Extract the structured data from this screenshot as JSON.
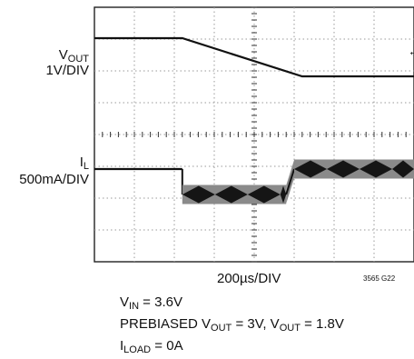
{
  "chart_data": {
    "type": "line",
    "title": "",
    "time_scale": "200µs/DIV",
    "figure_id": "3565 G22",
    "divisions": {
      "horizontal": 8,
      "vertical": 8
    },
    "grid": true,
    "channels": [
      {
        "name_main": "V",
        "name_sub": "OUT",
        "scale": "1V/DIV",
        "marker": "←",
        "unit": "V",
        "points": [
          {
            "t_div": 0.0,
            "level": 3.0
          },
          {
            "t_div": 2.2,
            "level": 3.0
          },
          {
            "t_div": 5.2,
            "level": 1.8
          },
          {
            "t_div": 8.0,
            "level": 1.8
          }
        ]
      },
      {
        "name_main": "I",
        "name_sub": "L",
        "scale": "500mA/DIV",
        "unit": "A",
        "segments": [
          {
            "t_start_div": 0.0,
            "t_end_div": 2.2,
            "avg": 0.0,
            "ripple_pp": 0.0
          },
          {
            "t_start_div": 2.2,
            "t_end_div": 4.8,
            "avg": -0.4,
            "ripple_pp": 0.3
          },
          {
            "t_start_div": 5.0,
            "t_end_div": 8.0,
            "avg": 0.0,
            "ripple_pp": 0.3
          }
        ]
      }
    ]
  },
  "conditions": [
    {
      "parts": [
        {
          "t": "V"
        },
        {
          "sub": "IN"
        },
        {
          "t": " = 3.6V"
        }
      ]
    },
    {
      "parts": [
        {
          "t": "PREBIASED V"
        },
        {
          "sub": "OUT"
        },
        {
          "t": " = 3V, V"
        },
        {
          "sub": "OUT"
        },
        {
          "t": " = 1.8V"
        }
      ]
    },
    {
      "parts": [
        {
          "t": "I"
        },
        {
          "sub": "LOAD"
        },
        {
          "t": " = 0A"
        }
      ]
    }
  ]
}
